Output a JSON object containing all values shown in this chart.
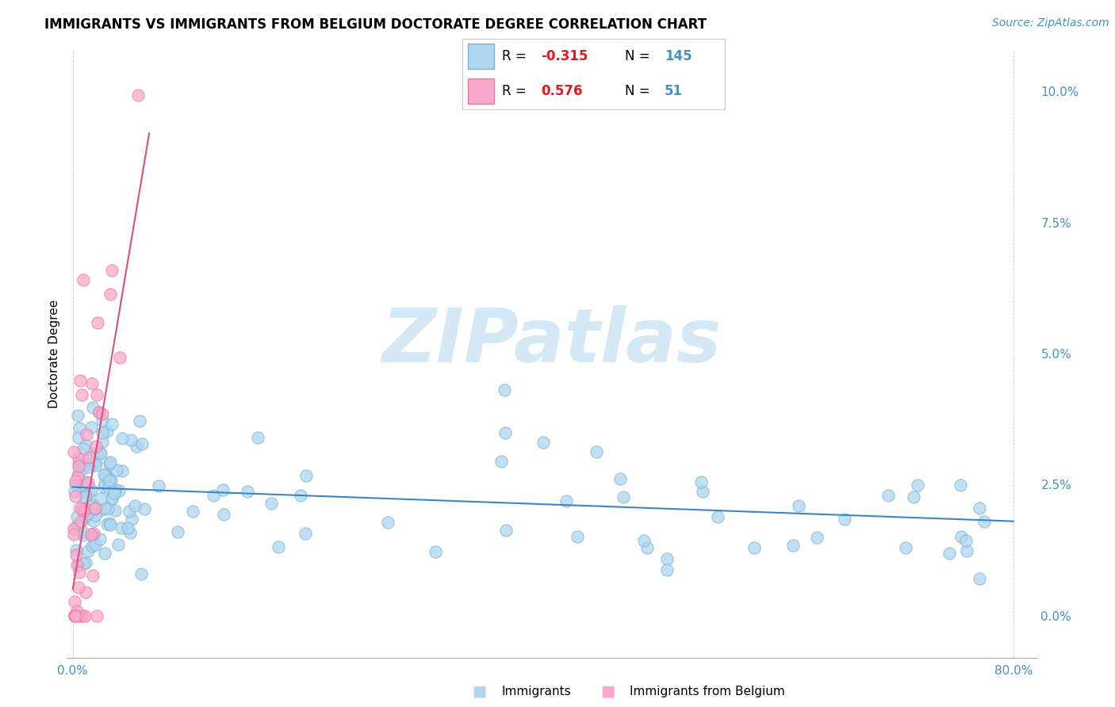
{
  "title": "IMMIGRANTS VS IMMIGRANTS FROM BELGIUM DOCTORATE DEGREE CORRELATION CHART",
  "source": "Source: ZipAtlas.com",
  "ylabel": "Doctorate Degree",
  "xlim": [
    -0.005,
    0.82
  ],
  "ylim": [
    -0.008,
    0.108
  ],
  "yticks": [
    0.0,
    0.025,
    0.05,
    0.075,
    0.1
  ],
  "ytick_labels": [
    "0.0%",
    "2.5%",
    "5.0%",
    "7.5%",
    "10.0%"
  ],
  "xtick_labels": [
    "0.0%",
    "80.0%"
  ],
  "xtick_vals": [
    0.0,
    0.8
  ],
  "legend_items": [
    {
      "label_r": "R = -0.315",
      "label_n": "N = 145",
      "face": "#aed6f1",
      "edge": "#7fb3d3"
    },
    {
      "label_r": "R =  0.576",
      "label_n": "N =  51",
      "face": "#f9a8c9",
      "edge": "#e87aa8"
    }
  ],
  "blue_dot_face": "#aed6f1",
  "blue_dot_edge": "#7fb3d3",
  "pink_dot_face": "#f9a8c9",
  "pink_dot_edge": "#e87aa8",
  "blue_line_color": "#3a86c8",
  "pink_line_color": "#d9517a",
  "grid_color": "#cccccc",
  "watermark_color": "#d5e8f5",
  "title_fontsize": 12,
  "source_fontsize": 10,
  "tick_fontsize": 11,
  "legend_fontsize": 12,
  "bottom_legend": [
    "Immigrants",
    "Immigrants from Belgium"
  ],
  "blue_line_x": [
    0.0,
    0.8
  ],
  "blue_line_y": [
    0.0245,
    0.018
  ],
  "pink_line_x": [
    0.0,
    0.065
  ],
  "pink_line_y": [
    0.005,
    0.092
  ]
}
